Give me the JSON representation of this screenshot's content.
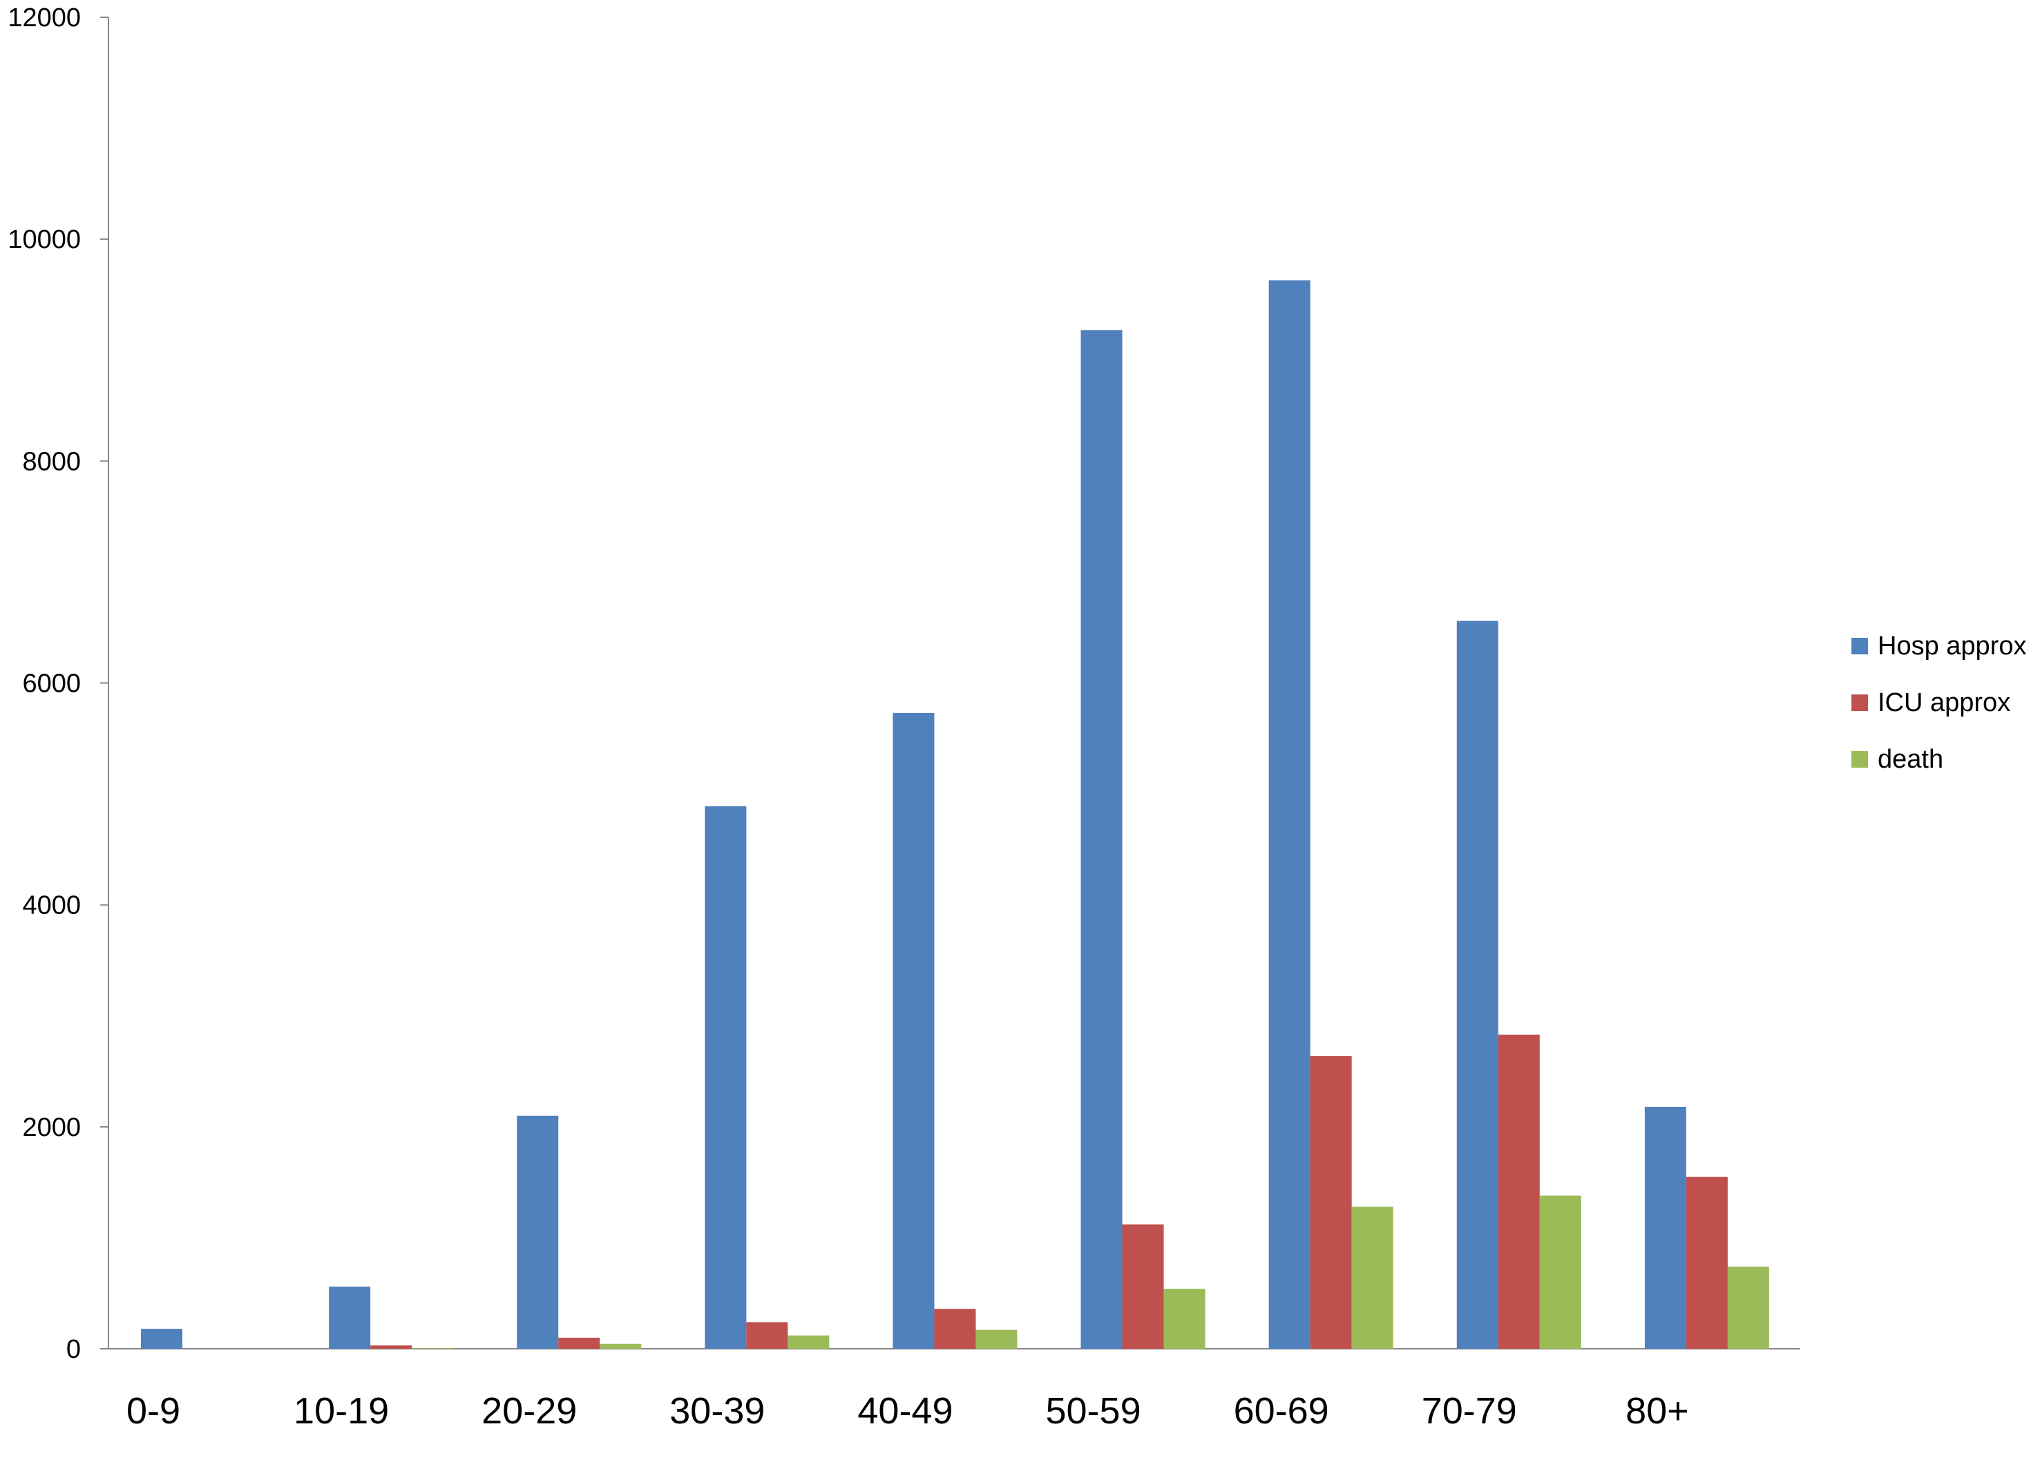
{
  "chart_data": {
    "type": "bar",
    "title": "",
    "xlabel": "",
    "ylabel": "",
    "ylim": [
      0,
      12000
    ],
    "yticks": [
      0,
      2000,
      4000,
      6000,
      8000,
      10000,
      12000
    ],
    "ytick_labels": [
      "0",
      "2000",
      "4000",
      "6000",
      "8000",
      "10000",
      "12000"
    ],
    "categories": [
      "0-9",
      "10-19",
      "20-29",
      "30-39",
      "40-49",
      "50-59",
      "60-69",
      "70-79",
      "80+"
    ],
    "series": [
      {
        "name": "Hosp approx",
        "color": "#4F81BD",
        "values": [
          180,
          560,
          2100,
          4890,
          5730,
          9180,
          9630,
          6560,
          2180
        ]
      },
      {
        "name": "ICU approx",
        "color": "#C0504D",
        "values": [
          0,
          30,
          100,
          240,
          360,
          1120,
          2640,
          2830,
          1550
        ]
      },
      {
        "name": "death",
        "color": "#9BBB59",
        "values": [
          0,
          5,
          45,
          120,
          170,
          540,
          1280,
          1380,
          740
        ]
      }
    ],
    "grid": false,
    "legend_position": "right"
  }
}
